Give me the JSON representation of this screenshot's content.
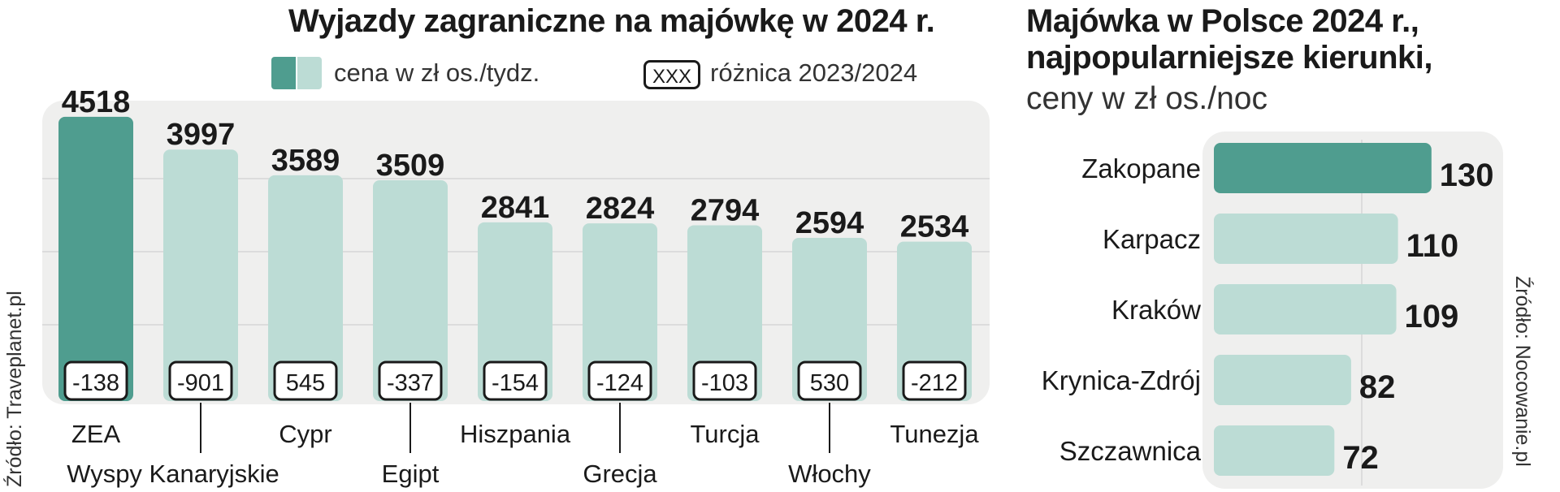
{
  "left_title": "Wyjazdy zagraniczne na majówkę w 2024 r.",
  "legend": {
    "price_label": "cena w zł os./tydz.",
    "box_sample": "XXX",
    "diff_label": "różnica 2023/2024"
  },
  "right_title_line1": "Majówka w Polsce 2024 r.,",
  "right_title_line2": "najpopularniejsze kierunki,",
  "right_subtitle": "ceny w zł os./noc",
  "source_left": "Źródło: Traveplanet.pl",
  "source_right": "Źródło: Nocowanie.pl",
  "colors": {
    "highlight": "#4f9d8f",
    "bar": "#bcdcd5",
    "panel": "#efefee",
    "grid": "#dcdcdc",
    "text": "#1a1a1a"
  },
  "chart_data": [
    {
      "type": "bar",
      "title": "Wyjazdy zagraniczne na majówkę w 2024 r.",
      "categories": [
        "ZEA",
        "Wyspy Kanaryjskie",
        "Cypr",
        "Egipt",
        "Hiszpania",
        "Grecja",
        "Turcja",
        "Włochy",
        "Tunezja"
      ],
      "series": [
        {
          "name": "cena w zł os./tydz.",
          "values": [
            4518,
            3997,
            3589,
            3509,
            2841,
            2824,
            2794,
            2594,
            2534
          ]
        },
        {
          "name": "różnica 2023/2024",
          "values": [
            -138,
            -901,
            545,
            -337,
            -154,
            -124,
            -103,
            530,
            -212
          ]
        }
      ],
      "highlight_index": 0,
      "grid": true
    },
    {
      "type": "bar",
      "orientation": "horizontal",
      "title": "Majówka w Polsce 2024 r., najpopularniejsze kierunki,",
      "subtitle": "ceny w zł os./noc",
      "categories": [
        "Zakopane",
        "Karpacz",
        "Kraków",
        "Krynica-Zdrój",
        "Szczawnica"
      ],
      "values": [
        130,
        110,
        109,
        82,
        72
      ],
      "highlight_index": 0,
      "grid": true
    }
  ]
}
